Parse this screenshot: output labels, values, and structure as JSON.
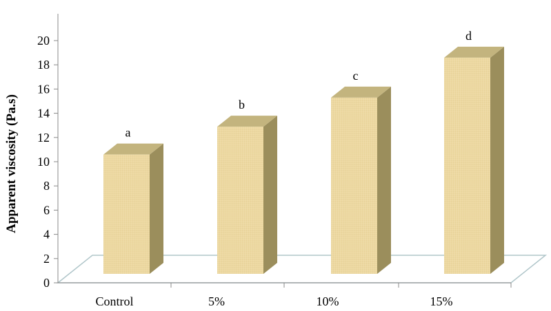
{
  "chart_data": {
    "type": "bar",
    "categories": [
      "Control",
      "5%",
      "10%",
      "15%"
    ],
    "values": [
      10.6,
      12.9,
      15.3,
      18.6
    ],
    "annotations": [
      "a",
      "b",
      "c",
      "d"
    ],
    "title": "",
    "xlabel": "",
    "ylabel": "Apparent viscosity (Pa.s)",
    "ylim": [
      0,
      20
    ],
    "yticks": [
      "0",
      "2",
      "4",
      "6",
      "8",
      "10",
      "12",
      "14",
      "16",
      "18",
      "20"
    ],
    "grid": false,
    "style": "3d",
    "colors": {
      "front": "#EDD9A0",
      "side": "#9B8E5C",
      "top": "#C3B47E",
      "floor_edge": "#AFC5C9"
    }
  }
}
